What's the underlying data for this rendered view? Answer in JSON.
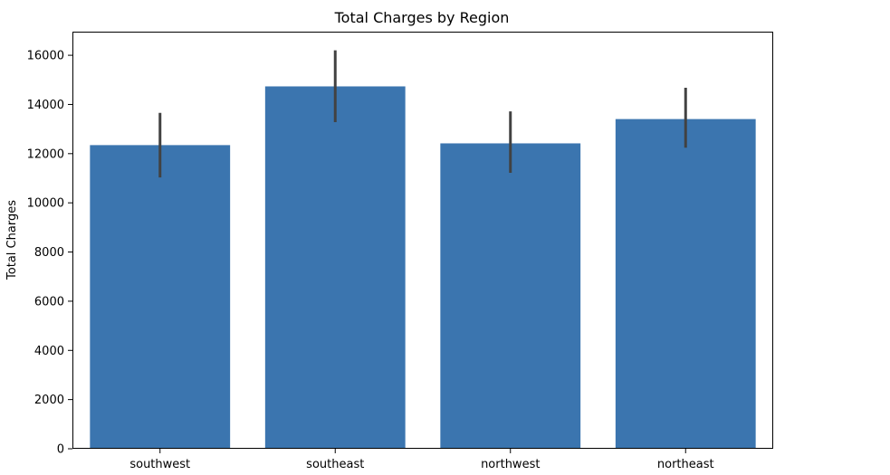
{
  "chart_data": {
    "type": "bar",
    "title": "Total Charges by Region",
    "xlabel": "",
    "ylabel": "Total Charges",
    "categories": [
      "southwest",
      "southeast",
      "northwest",
      "northeast"
    ],
    "values": [
      12347,
      14735,
      12418,
      13406
    ],
    "error_bars": {
      "lower": [
        11030,
        13280,
        11220,
        12240
      ],
      "upper": [
        13660,
        16200,
        13720,
        14680
      ]
    },
    "ylim": [
      0,
      16960
    ],
    "yticks": [
      0,
      2000,
      4000,
      6000,
      8000,
      10000,
      12000,
      14000,
      16000
    ],
    "grid": false,
    "legend": "none",
    "colors": {
      "bar": "#3b75af",
      "error_bar": "#424242",
      "axis": "#000000"
    }
  }
}
